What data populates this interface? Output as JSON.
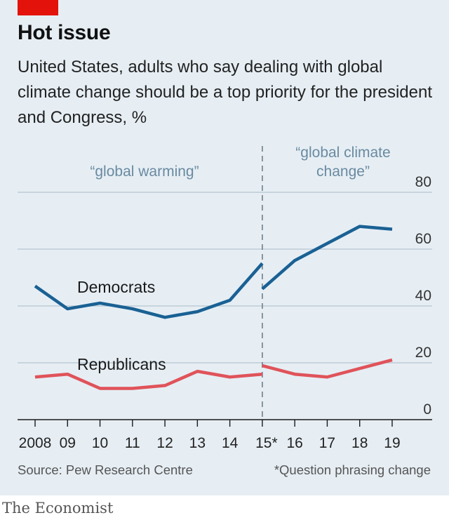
{
  "colors": {
    "democrats": "#1a6194",
    "republicans": "#e0535a",
    "tag": "#e3120b",
    "background": "#e6eef4",
    "annotation": "#6a8aa0"
  },
  "header": {
    "title": "Hot issue",
    "subtitle": "United States, adults who say dealing with global climate change should be a top priority for the president and Congress, %"
  },
  "footer": {
    "source": "Source: Pew Research Centre",
    "footnote": "*Question phrasing change",
    "brand": "The Economist"
  },
  "chart_data": {
    "type": "line",
    "categories": [
      "2008",
      "09",
      "10",
      "11",
      "12",
      "13",
      "14",
      "15*",
      "16",
      "17",
      "18",
      "19"
    ],
    "ylim": [
      0,
      80
    ],
    "yticks": [
      0,
      20,
      40,
      60,
      80
    ],
    "y_axis_position": "right",
    "break_after_index": 7,
    "series": [
      {
        "name": "Democrats",
        "segments": [
          {
            "x_index": [
              0,
              1,
              2,
              3,
              4,
              5,
              6,
              7
            ],
            "values": [
              47,
              39,
              41,
              39,
              36,
              38,
              42,
              55
            ]
          },
          {
            "x_index": [
              7,
              8,
              9,
              10,
              11
            ],
            "values": [
              46,
              56,
              62,
              68,
              67
            ]
          }
        ]
      },
      {
        "name": "Republicans",
        "segments": [
          {
            "x_index": [
              0,
              1,
              2,
              3,
              4,
              5,
              6,
              7
            ],
            "values": [
              15,
              16,
              11,
              11,
              12,
              17,
              15,
              16
            ]
          },
          {
            "x_index": [
              7,
              8,
              9,
              10,
              11
            ],
            "values": [
              19,
              16,
              15,
              18,
              21
            ]
          }
        ]
      }
    ],
    "annotations": {
      "before": "“global warming”",
      "after_line1": "“global climate",
      "after_line2": "change”"
    }
  }
}
